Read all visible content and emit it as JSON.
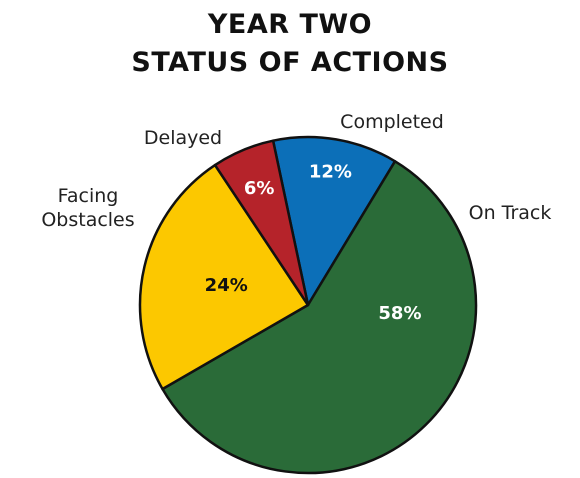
{
  "chart_data": {
    "type": "pie",
    "title": "YEAR TWO\nSTATUS OF ACTIONS",
    "categories": [
      "Completed",
      "On Track",
      "Facing Obstacles",
      "Delayed"
    ],
    "values": [
      12,
      58,
      24,
      6
    ],
    "value_labels": [
      "12%",
      "58%",
      "24%",
      "6%"
    ],
    "colors": [
      "#0c6fb8",
      "#2a6b38",
      "#fcc800",
      "#b5232a"
    ]
  }
}
